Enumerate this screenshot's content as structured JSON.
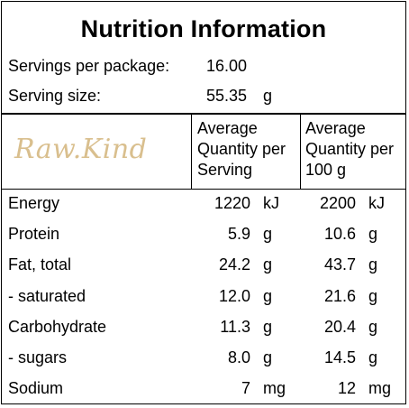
{
  "title": "Nutrition Information",
  "servings": {
    "label": "Servings per package:",
    "value": "16.00"
  },
  "serving_size": {
    "label": "Serving size:",
    "value": "55.35",
    "unit": "g"
  },
  "logo_text": "Raw.Kind",
  "headers": {
    "per_serving": [
      "Average",
      "Quantity per",
      "Serving"
    ],
    "per_100g": [
      "Average",
      "Quantity per",
      "100 g"
    ]
  },
  "rows": [
    {
      "name": "Energy",
      "serving": "1220",
      "serving_unit": "kJ",
      "per100": "2200",
      "per100_unit": "kJ"
    },
    {
      "name": "Protein",
      "serving": "5.9",
      "serving_unit": "g",
      "per100": "10.6",
      "per100_unit": "g"
    },
    {
      "name": "Fat, total",
      "serving": "24.2",
      "serving_unit": "g",
      "per100": "43.7",
      "per100_unit": "g"
    },
    {
      "name": "- saturated",
      "serving": "12.0",
      "serving_unit": "g",
      "per100": "21.6",
      "per100_unit": "g"
    },
    {
      "name": "Carbohydrate",
      "serving": "11.3",
      "serving_unit": "g",
      "per100": "20.4",
      "per100_unit": "g"
    },
    {
      "name": "- sugars",
      "serving": "8.0",
      "serving_unit": "g",
      "per100": "14.5",
      "per100_unit": "g"
    },
    {
      "name": "Sodium",
      "serving": "7",
      "serving_unit": "mg",
      "per100": "12",
      "per100_unit": "mg"
    }
  ],
  "colors": {
    "logo": "#d9bf8e",
    "border": "#000000"
  }
}
